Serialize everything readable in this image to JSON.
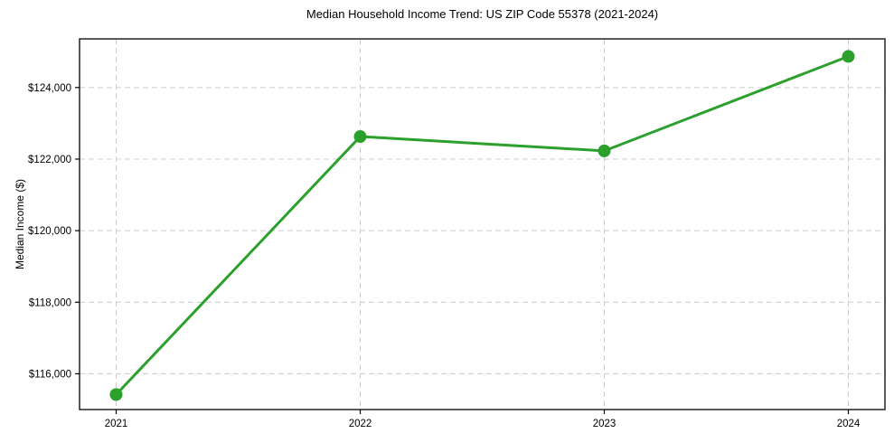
{
  "title": "Median Household Income Trend: US ZIP Code 55378 (2021-2024)",
  "chart_data": {
    "type": "line",
    "title": "Median Household Income Trend: US ZIP Code 55378 (2021-2024)",
    "xlabel": "",
    "ylabel": "Median Income ($)",
    "x": [
      2021,
      2022,
      2023,
      2024
    ],
    "x_tick_labels": [
      "2021",
      "2022",
      "2023",
      "2024"
    ],
    "series": [
      {
        "name": "Median Household Income",
        "values": [
          115420,
          122630,
          122230,
          124870
        ],
        "color": "#2ca02c",
        "marker": "circle"
      }
    ],
    "y_ticks": [
      116000,
      118000,
      120000,
      122000,
      124000
    ],
    "y_tick_labels": [
      "$116,000",
      "$118,000",
      "$120,000",
      "$122,000",
      "$124,000"
    ],
    "ylim": [
      115000,
      125360
    ],
    "xlim": [
      2020.85,
      2024.15
    ],
    "grid": true,
    "grid_style": "dashed",
    "grid_color": "#cccccc",
    "axis_color": "#000000",
    "background_color": "#ffffff",
    "legend": "none"
  }
}
